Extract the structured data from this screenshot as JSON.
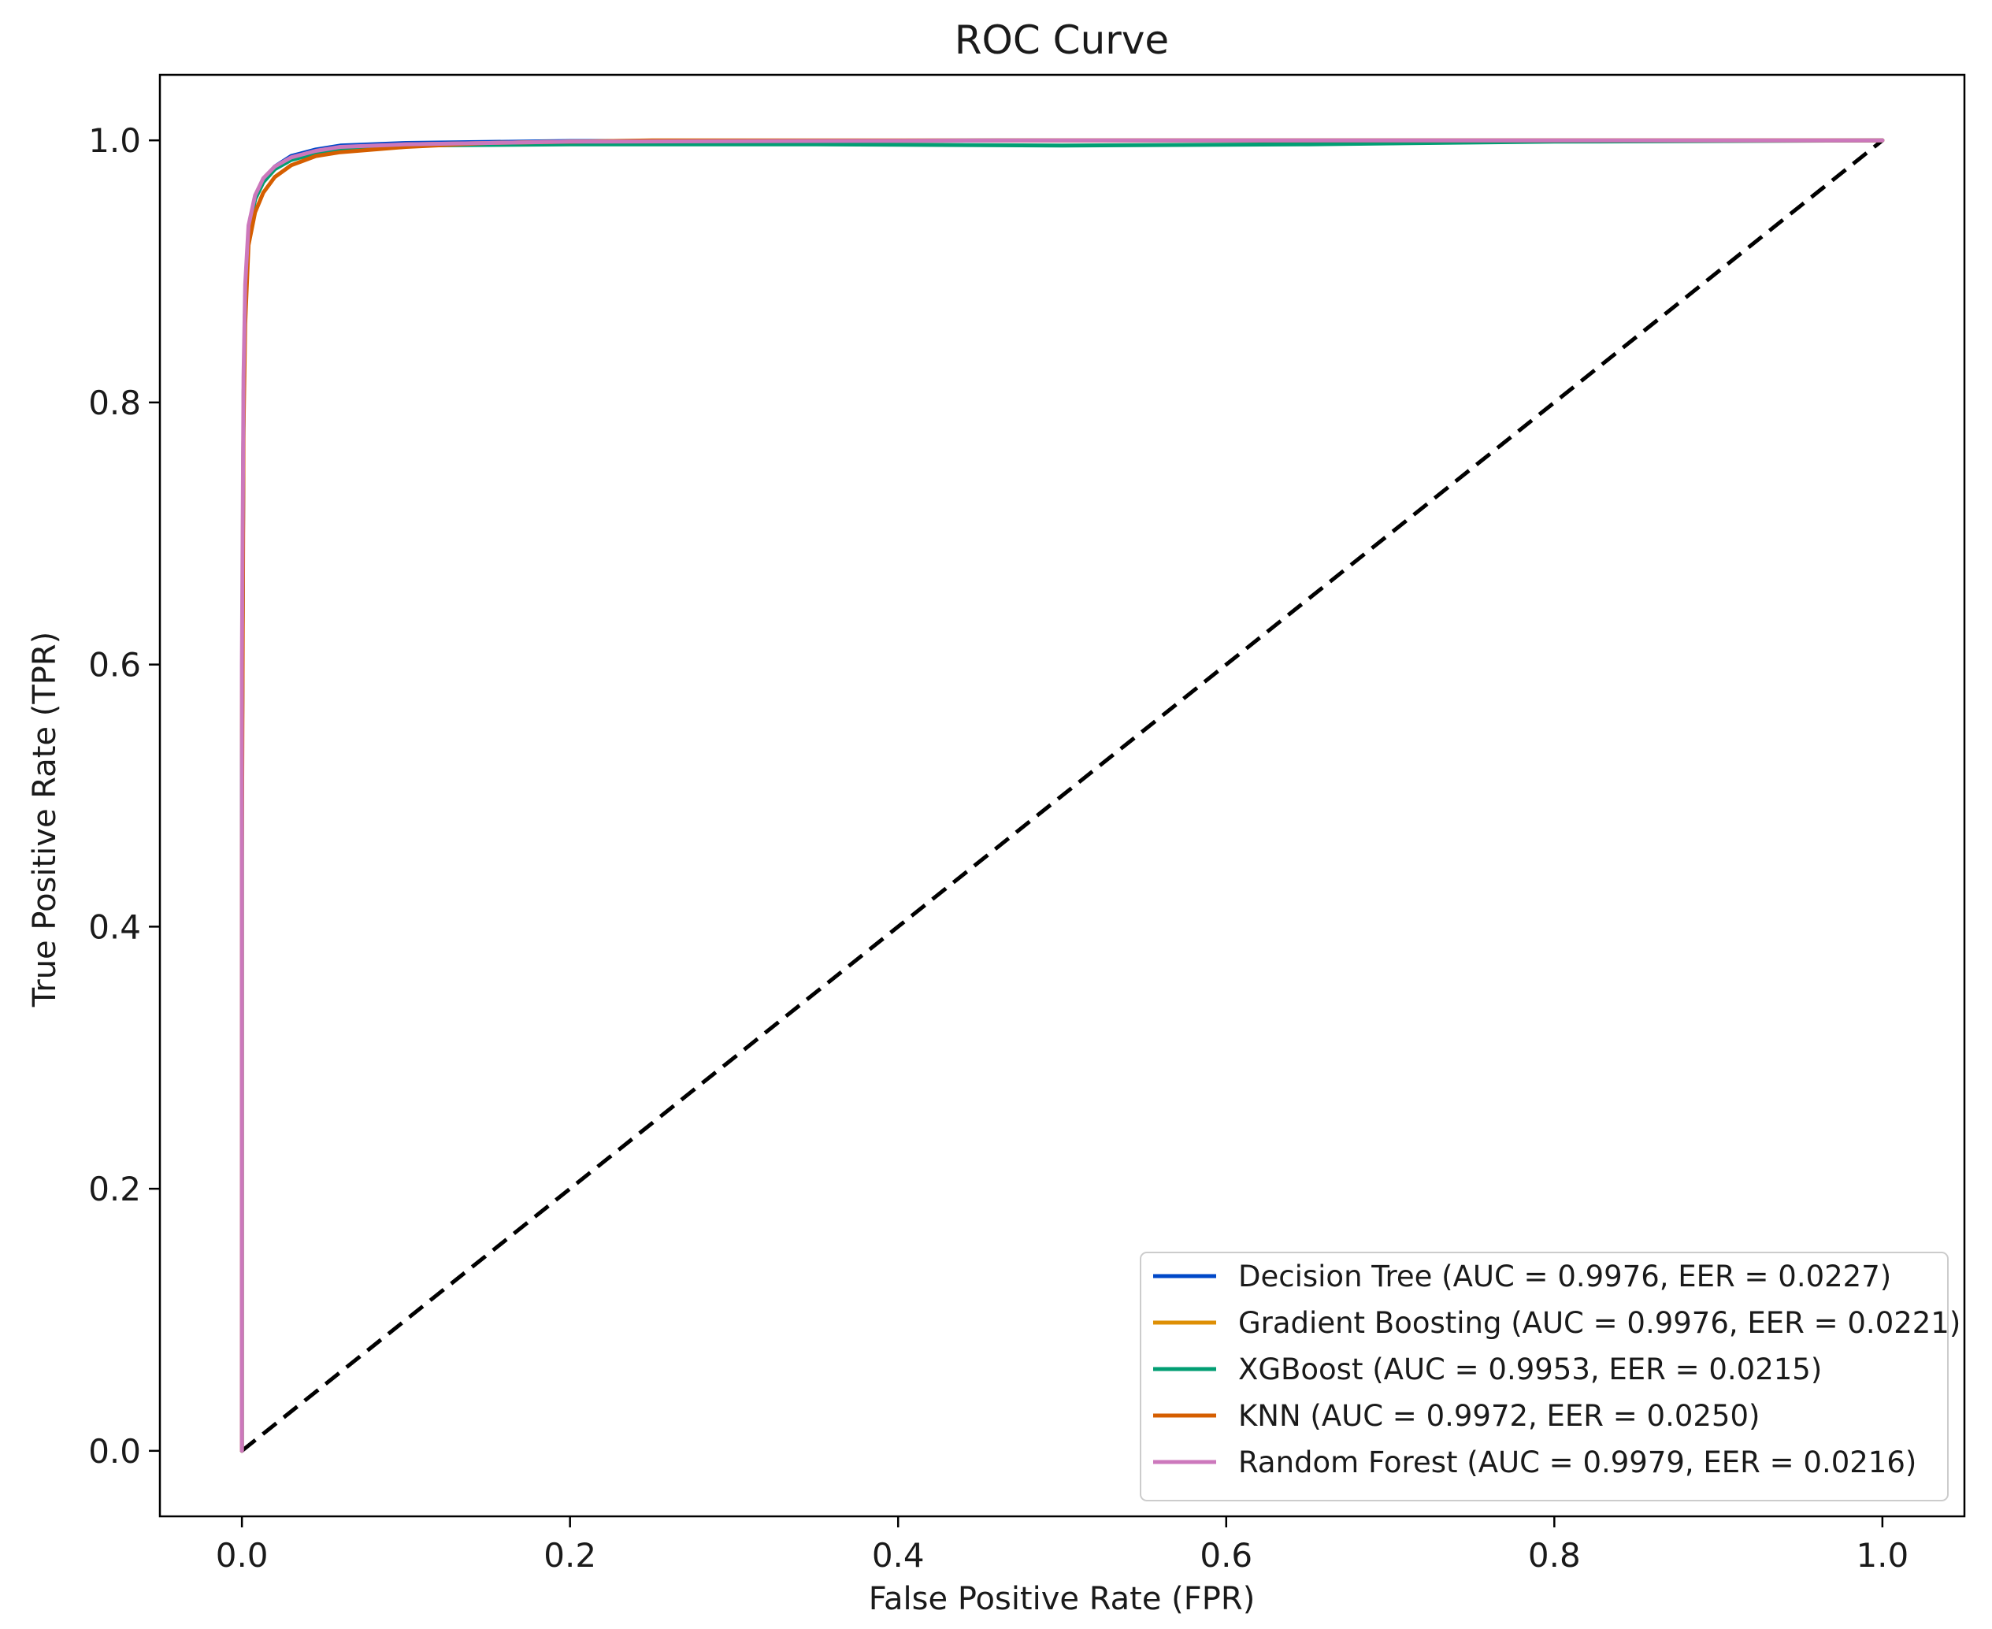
{
  "chart_data": {
    "type": "line",
    "title": "ROC Curve",
    "xlabel": "False Positive Rate (FPR)",
    "ylabel": "True Positive Rate (TPR)",
    "xlim": [
      -0.05,
      1.05
    ],
    "ylim": [
      -0.05,
      1.05
    ],
    "xticks": [
      0.0,
      0.2,
      0.4,
      0.6,
      0.8,
      1.0
    ],
    "xtick_labels": [
      "0.0",
      "0.2",
      "0.4",
      "0.6",
      "0.8",
      "1.0"
    ],
    "yticks": [
      0.0,
      0.2,
      0.4,
      0.6,
      0.8,
      1.0
    ],
    "ytick_labels": [
      "0.0",
      "0.2",
      "0.4",
      "0.6",
      "0.8",
      "1.0"
    ],
    "grid": false,
    "legend_position": "lower-right",
    "series": [
      {
        "name": "Decision Tree (AUC = 0.9976, EER = 0.0227)",
        "color": "#0048c8",
        "points": [
          [
            0,
            0
          ],
          [
            0,
            0.5
          ],
          [
            0.001,
            0.8
          ],
          [
            0.002,
            0.88
          ],
          [
            0.004,
            0.93
          ],
          [
            0.008,
            0.955
          ],
          [
            0.013,
            0.97
          ],
          [
            0.02,
            0.98
          ],
          [
            0.03,
            0.988
          ],
          [
            0.045,
            0.993
          ],
          [
            0.06,
            0.996
          ],
          [
            0.1,
            0.998
          ],
          [
            0.2,
            0.9995
          ],
          [
            0.5,
            1.0
          ],
          [
            1.0,
            1.0
          ]
        ]
      },
      {
        "name": "Gradient Boosting (AUC = 0.9976, EER = 0.0221)",
        "color": "#de8f05",
        "points": [
          [
            0,
            0
          ],
          [
            0,
            0.55
          ],
          [
            0.001,
            0.8
          ],
          [
            0.002,
            0.88
          ],
          [
            0.004,
            0.93
          ],
          [
            0.008,
            0.955
          ],
          [
            0.013,
            0.968
          ],
          [
            0.02,
            0.978
          ],
          [
            0.03,
            0.986
          ],
          [
            0.045,
            0.991
          ],
          [
            0.06,
            0.994
          ],
          [
            0.1,
            0.997
          ],
          [
            0.2,
            0.999
          ],
          [
            0.5,
            1.0
          ],
          [
            1.0,
            1.0
          ]
        ]
      },
      {
        "name": "XGBoost (AUC = 0.9953, EER = 0.0215)",
        "color": "#029e73",
        "points": [
          [
            0,
            0
          ],
          [
            0,
            0.5
          ],
          [
            0.001,
            0.8
          ],
          [
            0.002,
            0.88
          ],
          [
            0.004,
            0.93
          ],
          [
            0.008,
            0.955
          ],
          [
            0.013,
            0.968
          ],
          [
            0.02,
            0.978
          ],
          [
            0.03,
            0.985
          ],
          [
            0.045,
            0.99
          ],
          [
            0.06,
            0.993
          ],
          [
            0.1,
            0.996
          ],
          [
            0.2,
            0.997
          ],
          [
            0.35,
            0.997
          ],
          [
            0.5,
            0.996
          ],
          [
            0.65,
            0.997
          ],
          [
            0.8,
            0.999
          ],
          [
            1.0,
            1.0
          ]
        ]
      },
      {
        "name": "KNN (AUC = 0.9972, EER = 0.0250)",
        "color": "#d55e00",
        "points": [
          [
            0,
            0
          ],
          [
            0,
            0.45
          ],
          [
            0.001,
            0.78
          ],
          [
            0.002,
            0.86
          ],
          [
            0.004,
            0.92
          ],
          [
            0.008,
            0.945
          ],
          [
            0.013,
            0.96
          ],
          [
            0.02,
            0.972
          ],
          [
            0.03,
            0.981
          ],
          [
            0.045,
            0.988
          ],
          [
            0.06,
            0.991
          ],
          [
            0.1,
            0.995
          ],
          [
            0.15,
            0.998
          ],
          [
            0.25,
            1.0
          ],
          [
            1.0,
            1.0
          ]
        ]
      },
      {
        "name": "Random Forest (AUC = 0.9979, EER = 0.0216)",
        "color": "#cc78bc",
        "points": [
          [
            0,
            0
          ],
          [
            0,
            0.6
          ],
          [
            0.001,
            0.82
          ],
          [
            0.002,
            0.89
          ],
          [
            0.004,
            0.935
          ],
          [
            0.008,
            0.958
          ],
          [
            0.013,
            0.971
          ],
          [
            0.02,
            0.98
          ],
          [
            0.03,
            0.987
          ],
          [
            0.045,
            0.992
          ],
          [
            0.06,
            0.995
          ],
          [
            0.1,
            0.997
          ],
          [
            0.2,
            0.999
          ],
          [
            0.5,
            1.0
          ],
          [
            1.0,
            1.0
          ]
        ]
      }
    ],
    "reference_line": {
      "points": [
        [
          0,
          0
        ],
        [
          1,
          1
        ]
      ],
      "style": "dashed",
      "color": "#000000"
    }
  }
}
